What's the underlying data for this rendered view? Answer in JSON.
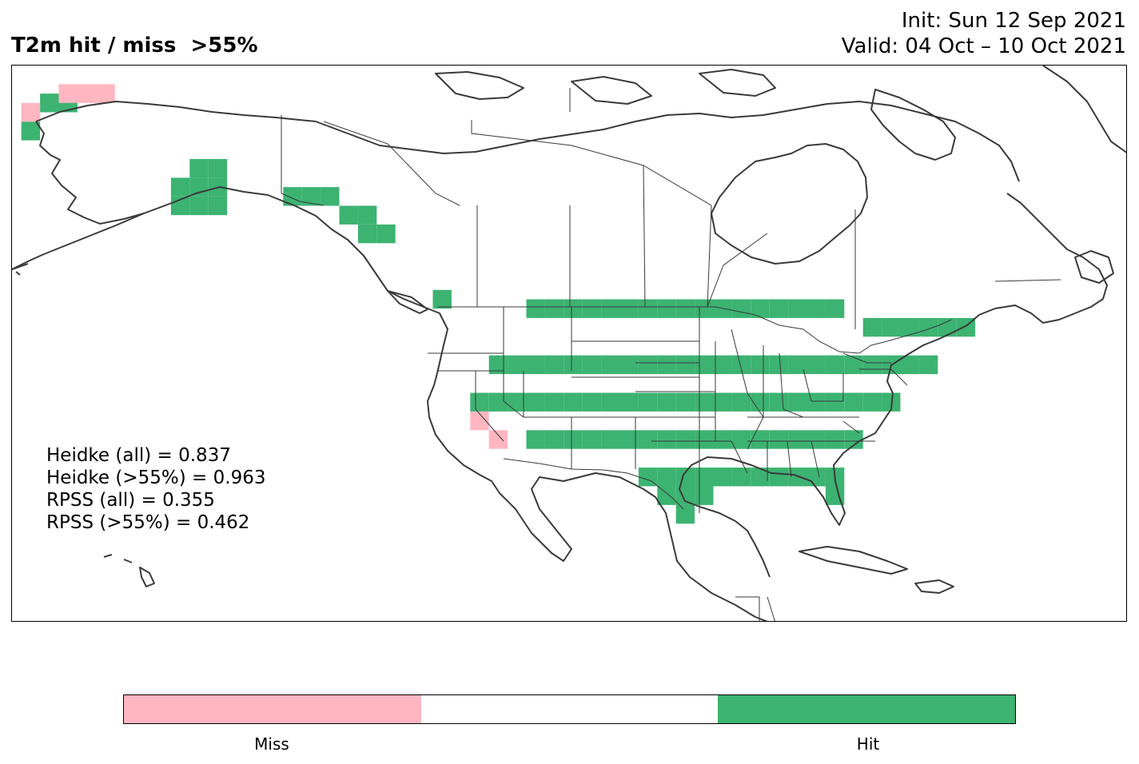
{
  "header": {
    "title": "T2m hit / miss  >55%",
    "init": "Init: Sun 12 Sep 2021",
    "valid": "Valid: 04 Oct – 10 Oct 2021"
  },
  "stats": [
    "Heidke (all) = 0.837",
    "Heidke (>55%) = 0.963",
    "RPSS (all) = 0.355",
    "RPSS (>55%) = 0.462"
  ],
  "legend": {
    "categories": [
      "Miss",
      "",
      "Hit"
    ],
    "colors": [
      "#ffb6c1",
      "#ffffff",
      "#3cb371"
    ],
    "labels": {
      "miss": "Miss",
      "hit": "Hit"
    }
  },
  "map_data": {
    "type": "categorical-grid",
    "region": "North America",
    "grid_step_deg": 2,
    "colors": {
      "hit": "#3cb371",
      "miss": "#ffb6c1"
    },
    "hit_cells": [
      [
        -165,
        70
      ],
      [
        -163,
        70
      ],
      [
        -167,
        67
      ],
      [
        -149,
        63
      ],
      [
        -147,
        63
      ],
      [
        -151,
        61
      ],
      [
        -149,
        61
      ],
      [
        -147,
        61
      ],
      [
        -151,
        59
      ],
      [
        -149,
        59
      ],
      [
        -147,
        59
      ],
      [
        -139,
        60
      ],
      [
        -137,
        60
      ],
      [
        -135,
        60
      ],
      [
        -133,
        58
      ],
      [
        -131,
        58
      ],
      [
        -131,
        56
      ],
      [
        -129,
        56
      ],
      [
        -123,
        49
      ],
      [
        -113,
        48
      ],
      [
        -111,
        48
      ],
      [
        -109,
        48
      ],
      [
        -107,
        48
      ],
      [
        -105,
        48
      ],
      [
        -103,
        48
      ],
      [
        -101,
        48
      ],
      [
        -99,
        48
      ],
      [
        -97,
        48
      ],
      [
        -95,
        48
      ],
      [
        -93,
        48
      ],
      [
        -91,
        48
      ],
      [
        -89,
        48
      ],
      [
        -87,
        48
      ],
      [
        -85,
        48
      ],
      [
        -83,
        48
      ],
      [
        -81,
        48
      ],
      [
        -77,
        46
      ],
      [
        -75,
        46
      ],
      [
        -73,
        46
      ],
      [
        -71,
        46
      ],
      [
        -69,
        46
      ],
      [
        -67,
        46
      ],
      [
        -117,
        42
      ],
      [
        -115,
        42
      ],
      [
        -113,
        42
      ],
      [
        -111,
        42
      ],
      [
        -109,
        42
      ],
      [
        -107,
        42
      ],
      [
        -105,
        42
      ],
      [
        -103,
        42
      ],
      [
        -101,
        42
      ],
      [
        -99,
        42
      ],
      [
        -97,
        42
      ],
      [
        -95,
        42
      ],
      [
        -93,
        42
      ],
      [
        -91,
        42
      ],
      [
        -89,
        42
      ],
      [
        -87,
        42
      ],
      [
        -85,
        42
      ],
      [
        -83,
        42
      ],
      [
        -81,
        42
      ],
      [
        -79,
        42
      ],
      [
        -77,
        42
      ],
      [
        -75,
        42
      ],
      [
        -73,
        42
      ],
      [
        -71,
        42
      ],
      [
        -119,
        38
      ],
      [
        -117,
        38
      ],
      [
        -115,
        38
      ],
      [
        -113,
        38
      ],
      [
        -111,
        38
      ],
      [
        -109,
        38
      ],
      [
        -107,
        38
      ],
      [
        -105,
        38
      ],
      [
        -103,
        38
      ],
      [
        -101,
        38
      ],
      [
        -99,
        38
      ],
      [
        -97,
        38
      ],
      [
        -95,
        38
      ],
      [
        -93,
        38
      ],
      [
        -91,
        38
      ],
      [
        -89,
        38
      ],
      [
        -87,
        38
      ],
      [
        -85,
        38
      ],
      [
        -83,
        38
      ],
      [
        -81,
        38
      ],
      [
        -79,
        38
      ],
      [
        -77,
        38
      ],
      [
        -75,
        38
      ],
      [
        -113,
        34
      ],
      [
        -111,
        34
      ],
      [
        -109,
        34
      ],
      [
        -107,
        34
      ],
      [
        -105,
        34
      ],
      [
        -103,
        34
      ],
      [
        -101,
        34
      ],
      [
        -99,
        34
      ],
      [
        -97,
        34
      ],
      [
        -95,
        34
      ],
      [
        -93,
        34
      ],
      [
        -91,
        34
      ],
      [
        -89,
        34
      ],
      [
        -87,
        34
      ],
      [
        -85,
        34
      ],
      [
        -83,
        34
      ],
      [
        -81,
        34
      ],
      [
        -79,
        34
      ],
      [
        -101,
        30
      ],
      [
        -99,
        30
      ],
      [
        -97,
        30
      ],
      [
        -95,
        30
      ],
      [
        -93,
        30
      ],
      [
        -91,
        30
      ],
      [
        -89,
        30
      ],
      [
        -87,
        30
      ],
      [
        -85,
        30
      ],
      [
        -83,
        30
      ],
      [
        -81,
        30
      ],
      [
        -99,
        28
      ],
      [
        -97,
        28
      ],
      [
        -95,
        28
      ],
      [
        -81,
        28
      ],
      [
        -97,
        26
      ]
    ],
    "miss_cells": [
      [
        -163,
        71
      ],
      [
        -161,
        71
      ],
      [
        -159,
        71
      ],
      [
        -167,
        69
      ],
      [
        -119,
        36
      ],
      [
        -117,
        34
      ]
    ]
  }
}
